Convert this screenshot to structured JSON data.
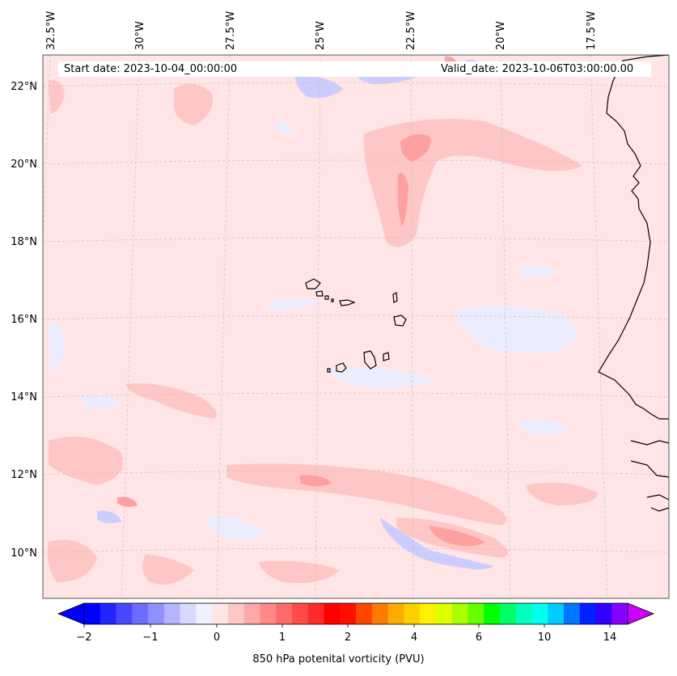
{
  "map": {
    "start_label": "Start date: 2023-10-04_00:00:00",
    "valid_label": "Valid_date: 2023-10-06T03:00:00.00",
    "lon_labels": [
      "32.5°W",
      "30°W",
      "27.5°W",
      "25°W",
      "22.5°W",
      "20°W",
      "17.5°W"
    ],
    "lat_labels": [
      "22°N",
      "20°N",
      "18°N",
      "16°N",
      "14°N",
      "12°N",
      "10°N"
    ],
    "field_colors": {
      "background": "#ffe5e5",
      "light_red": "#ffc6c6",
      "mid_red": "#ffa0a0",
      "light_blue": "#ececff",
      "mid_blue": "#ccccff",
      "coast": "#000000",
      "grid": "#bbbbbb"
    }
  },
  "colorbar": {
    "title": "850 hPa potenital vorticity (PVU)",
    "tick_labels": [
      "−2",
      "−1",
      "0",
      "1",
      "2",
      "4",
      "6",
      "10",
      "14"
    ],
    "tick_values": [
      -2,
      -1,
      0,
      1,
      2,
      4,
      6,
      10,
      14
    ],
    "colors": [
      "#0000ff",
      "#2424ff",
      "#4848ff",
      "#6c6cff",
      "#9090ff",
      "#b4b4ff",
      "#d8d8ff",
      "#f0f0ff",
      "#ffe5e5",
      "#ffc6c6",
      "#ffa8a8",
      "#ff8888",
      "#ff6a6a",
      "#ff4a4a",
      "#ff2a2a",
      "#ff0000",
      "#ff0f00",
      "#ff4400",
      "#ff7a00",
      "#ffaa00",
      "#ffd000",
      "#fff000",
      "#ddff00",
      "#aaff00",
      "#66ff00",
      "#00ff00",
      "#00ff66",
      "#00ffbb",
      "#00ffee",
      "#00ccff",
      "#0077ff",
      "#0022ff",
      "#3300ff",
      "#8800ff"
    ],
    "extend_low_color": "#0000ff",
    "extend_high_color": "#cc00ff"
  }
}
